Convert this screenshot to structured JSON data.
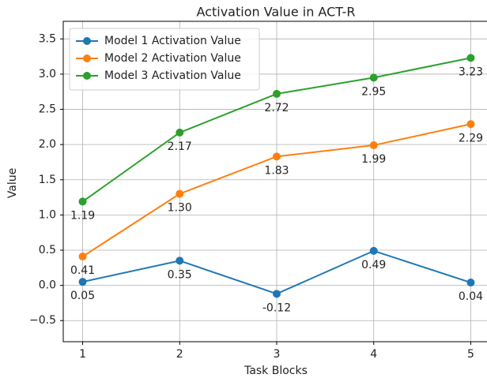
{
  "chart_data": {
    "type": "line",
    "title": "Activation Value in ACT-R",
    "xlabel": "Task Blocks",
    "ylabel": "Value",
    "x": [
      1,
      2,
      3,
      4,
      5
    ],
    "series": [
      {
        "name": "Model 1 Activation Value",
        "color": "#1f77b4",
        "values": [
          0.05,
          0.35,
          -0.12,
          0.49,
          0.04
        ],
        "value_labels": [
          "0.05",
          "0.35",
          "-0.12",
          "0.49",
          "0.04"
        ]
      },
      {
        "name": "Model 2 Activation Value",
        "color": "#ff7f0e",
        "values": [
          0.41,
          1.3,
          1.83,
          1.99,
          2.29
        ],
        "value_labels": [
          "0.41",
          "1.30",
          "1.83",
          "1.99",
          "2.29"
        ]
      },
      {
        "name": "Model 3 Activation Value",
        "color": "#2ca02c",
        "values": [
          1.19,
          2.17,
          2.72,
          2.95,
          3.23
        ],
        "value_labels": [
          "1.19",
          "2.17",
          "2.72",
          "2.95",
          "3.23"
        ]
      }
    ],
    "xlim": [
      0.8,
      5.2
    ],
    "xticks": [
      1,
      2,
      3,
      4,
      5
    ],
    "ylim": [
      -0.8,
      3.75
    ],
    "yticks": [
      {
        "value": -0.5,
        "label": "−0.5"
      },
      {
        "value": 0,
        "label": "0.0"
      },
      0.5,
      {
        "value": 1,
        "label": "1.0"
      },
      1.5,
      {
        "value": 2,
        "label": "2.0"
      },
      2.5,
      {
        "value": 3,
        "label": "3.0"
      },
      3.5
    ],
    "grid": true,
    "legend": "upper left"
  }
}
